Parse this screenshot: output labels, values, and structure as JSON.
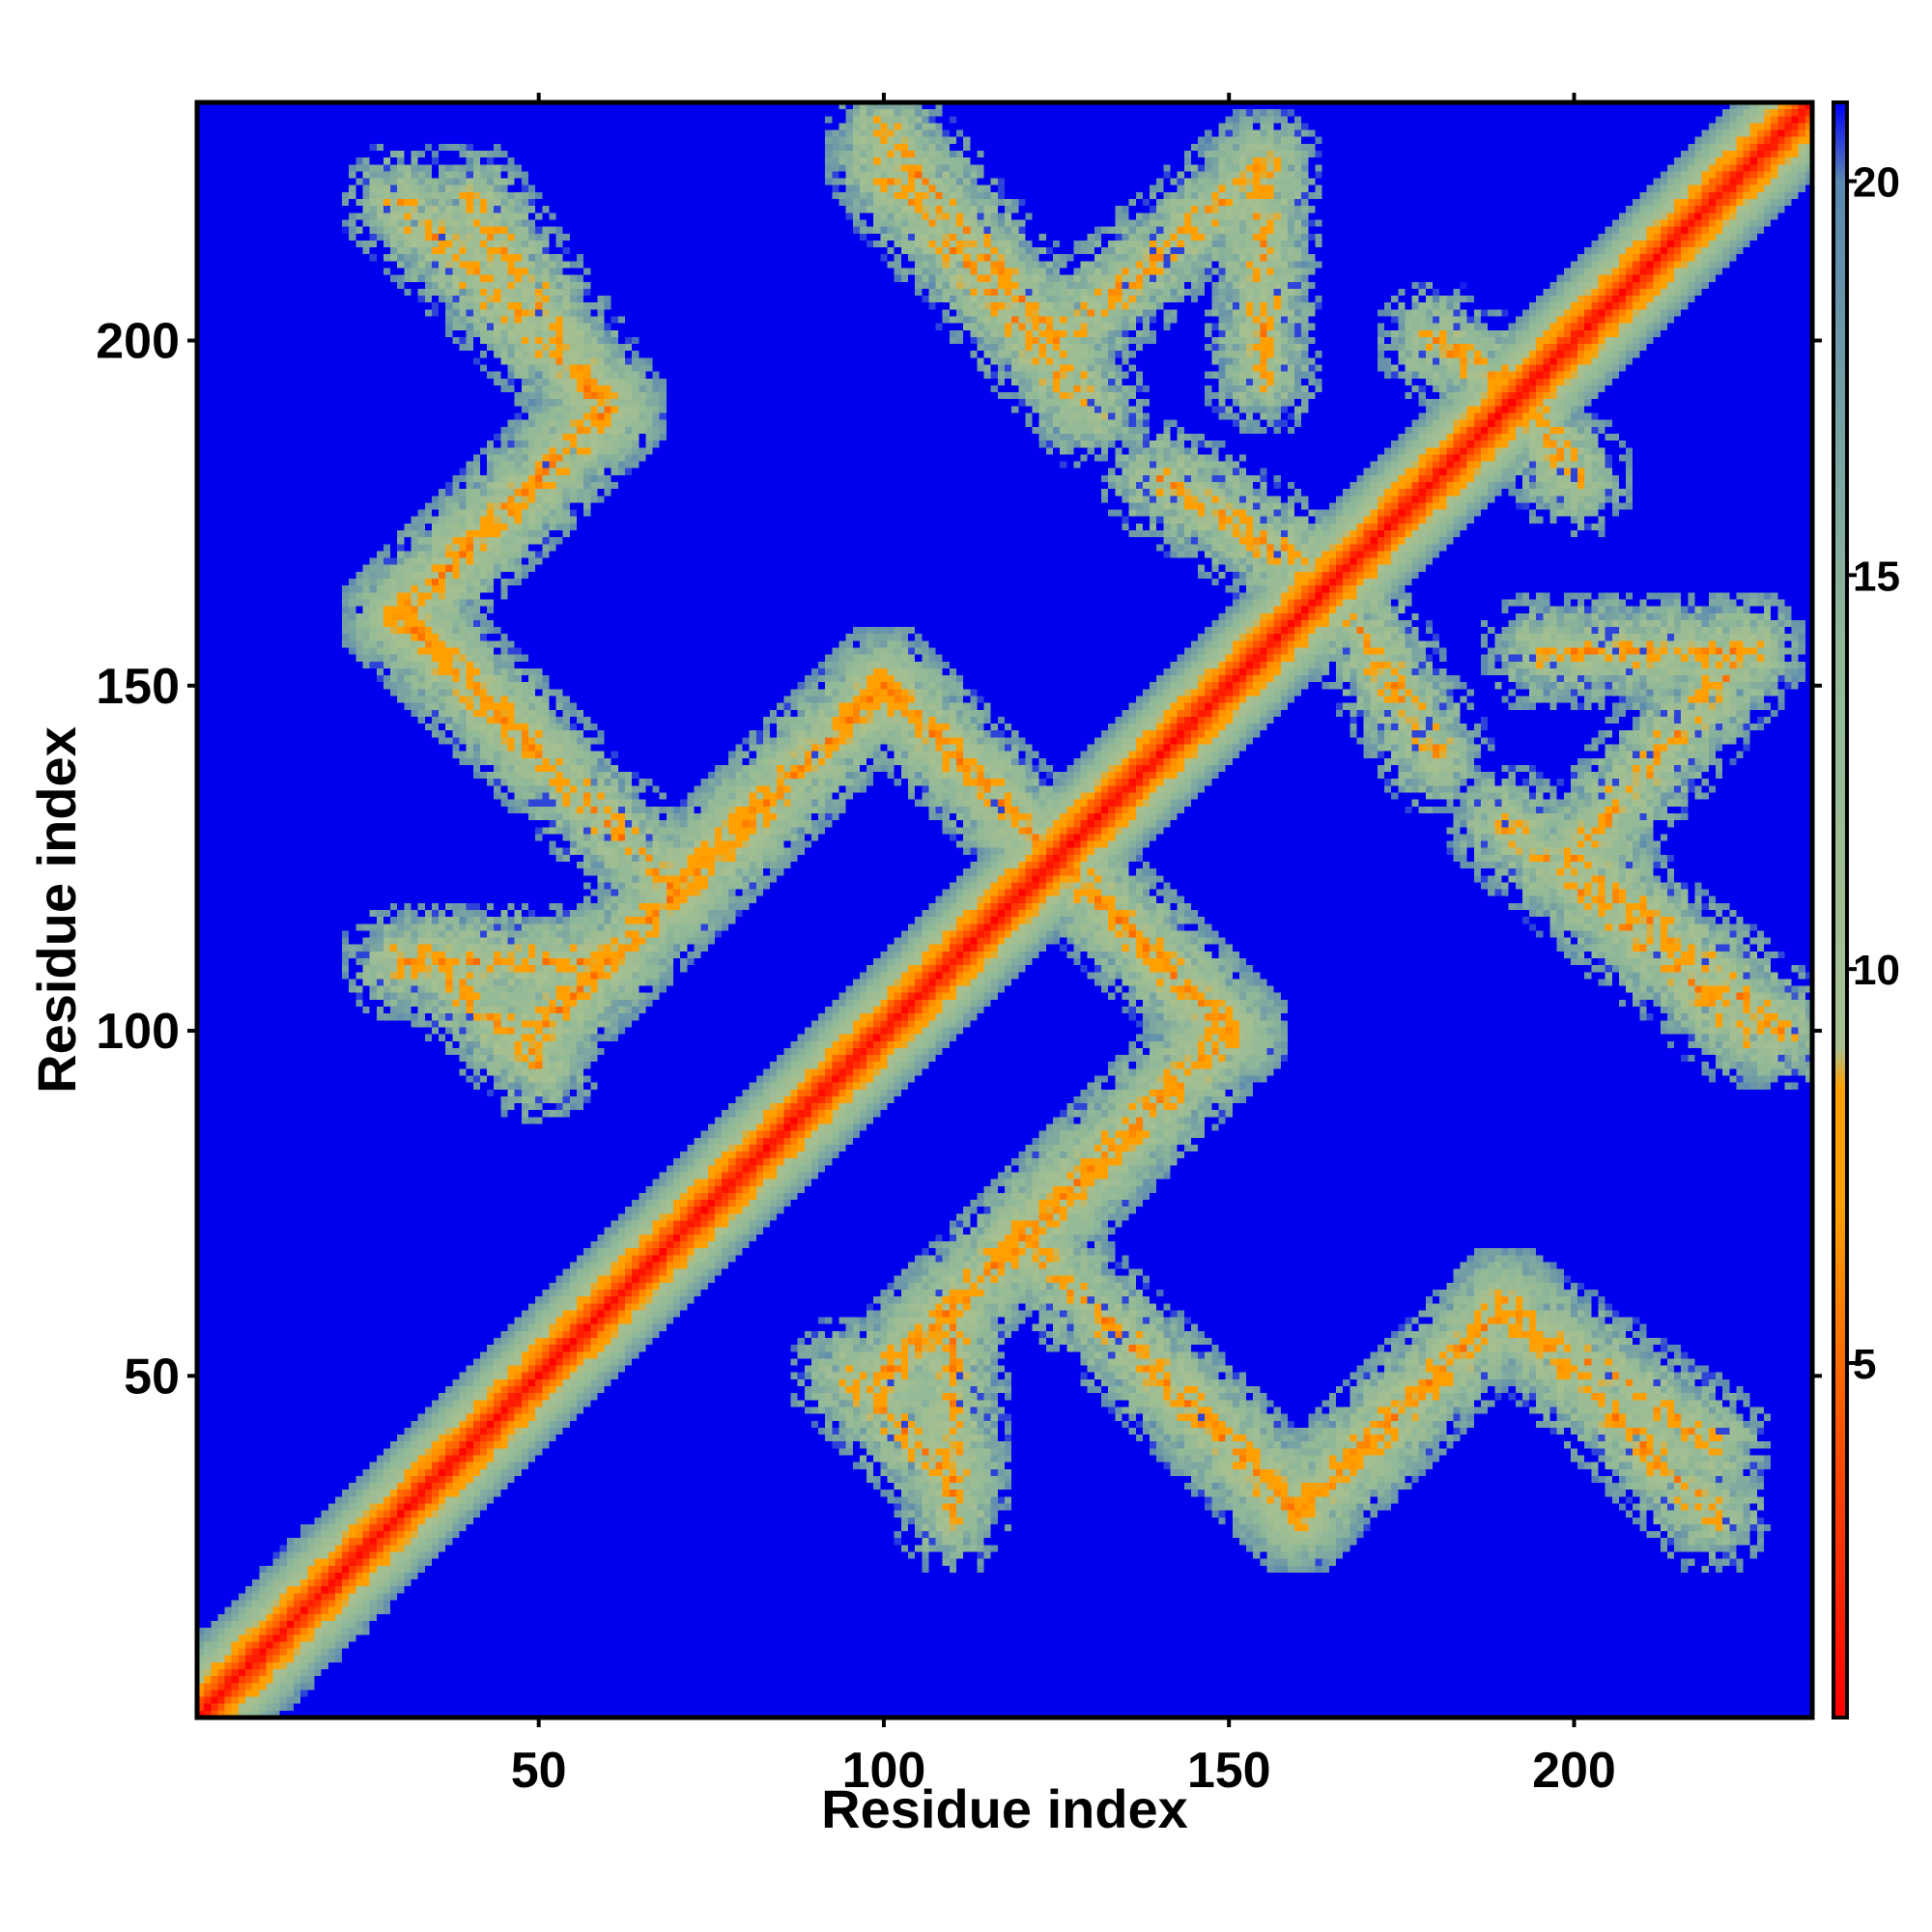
{
  "chart_data": {
    "type": "heatmap",
    "title": "",
    "xlabel": "Residue index",
    "ylabel": "Residue index",
    "n_residues": 234,
    "xlim": [
      1,
      234
    ],
    "ylim": [
      1,
      234
    ],
    "x_ticks": [
      50,
      100,
      150,
      200
    ],
    "y_ticks": [
      50,
      100,
      150,
      200
    ],
    "x_tick_labels": [
      "50",
      "100",
      "150",
      "200"
    ],
    "y_tick_labels": [
      "50",
      "100",
      "150",
      "200"
    ],
    "colorbar": {
      "range": [
        0.5,
        21
      ],
      "ticks": [
        5,
        10,
        15,
        20
      ],
      "tick_labels": [
        "5",
        "10",
        "15",
        "20"
      ],
      "colors": [
        {
          "value": 0.5,
          "color": "#ff0000"
        },
        {
          "value": 4,
          "color": "#ff5000"
        },
        {
          "value": 7,
          "color": "#ffa000"
        },
        {
          "value": 8.5,
          "color": "#ffa000"
        },
        {
          "value": 9,
          "color": "#a8c090"
        },
        {
          "value": 14,
          "color": "#90b898"
        },
        {
          "value": 20,
          "color": "#5a88b0"
        },
        {
          "value": 21,
          "color": "#0000ff"
        }
      ]
    },
    "background_color": "#0000ee",
    "structure": {
      "main_diagonal": {
        "from": 1,
        "to": 234
      },
      "contact_bands": [
        {
          "from": [
            30,
            220
          ],
          "to": [
            60,
            190
          ]
        },
        {
          "from": [
            60,
            190
          ],
          "to": [
            30,
            160
          ]
        },
        {
          "from": [
            30,
            160
          ],
          "to": [
            70,
            120
          ]
        },
        {
          "from": [
            70,
            120
          ],
          "to": [
            100,
            150
          ]
        },
        {
          "from": [
            100,
            150
          ],
          "to": [
            130,
            120
          ]
        },
        {
          "from": [
            130,
            120
          ],
          "to": [
            150,
            100
          ]
        },
        {
          "from": [
            150,
            100
          ],
          "to": [
            130,
            80
          ]
        },
        {
          "from": [
            130,
            80
          ],
          "to": [
            100,
            50
          ]
        },
        {
          "from": [
            100,
            50
          ],
          "to": [
            130,
            80
          ]
        },
        {
          "from": [
            100,
            230
          ],
          "to": [
            125,
            200
          ]
        },
        {
          "from": [
            125,
            200
          ],
          "to": [
            155,
            225
          ]
        },
        {
          "from": [
            140,
            180
          ],
          "to": [
            165,
            165
          ]
        },
        {
          "from": [
            180,
            200
          ],
          "to": [
            195,
            190
          ]
        },
        {
          "from": [
            195,
            155
          ],
          "to": [
            225,
            155
          ]
        },
        {
          "from": [
            190,
            130
          ],
          "to": [
            225,
            100
          ]
        },
        {
          "from": [
            140,
            50
          ],
          "to": [
            160,
            30
          ]
        },
        {
          "from": [
            160,
            30
          ],
          "to": [
            190,
            60
          ]
        },
        {
          "from": [
            190,
            60
          ],
          "to": [
            220,
            40
          ]
        },
        {
          "from": [
            30,
            110
          ],
          "to": [
            60,
            110
          ]
        },
        {
          "from": [
            95,
            50
          ],
          "to": [
            110,
            35
          ]
        },
        {
          "from": [
            1,
            1
          ],
          "to": [
            20,
            20
          ]
        }
      ]
    }
  }
}
